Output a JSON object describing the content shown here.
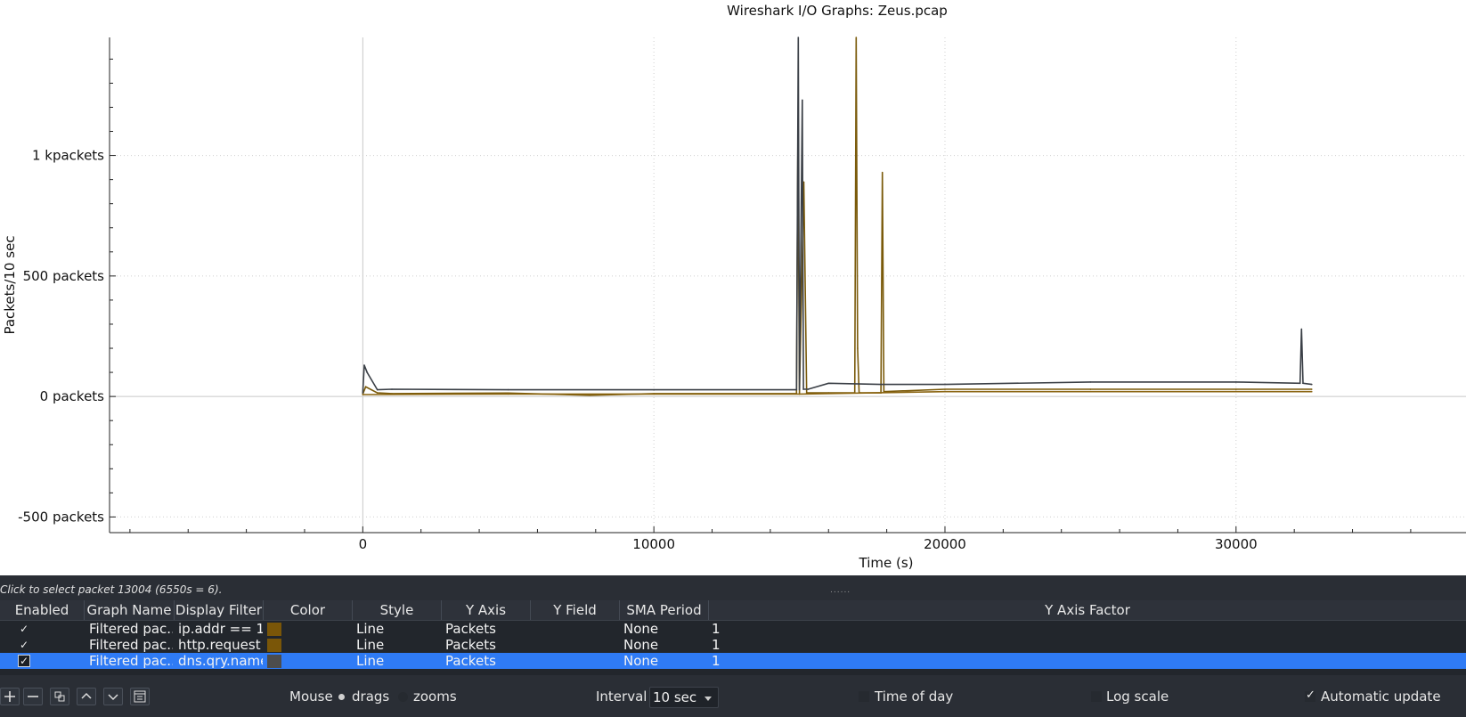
{
  "window_title": "Wireshark I/O Graphs: Zeus.pcap",
  "chart_data": {
    "type": "line",
    "title": "Wireshark I/O Graphs: Zeus.pcap",
    "xlabel": "Time (s)",
    "ylabel": "Packets/10 sec",
    "xlim": [
      -8700,
      37900
    ],
    "ylim": [
      -565,
      1490
    ],
    "x_ticks": [
      0,
      10000,
      20000,
      30000
    ],
    "x_tick_labels": [
      "0",
      "10000",
      "20000",
      "30000"
    ],
    "y_ticks": [
      -500,
      0,
      500,
      1000
    ],
    "y_tick_labels": [
      "-500 packets",
      "0 packets",
      "500 packets",
      "1 kpackets"
    ],
    "grid": true,
    "series": [
      {
        "name": "ip.addr == 1...",
        "color": "#7a5a0a",
        "x": [
          0,
          100,
          500,
          1000,
          5000,
          7800,
          10000,
          14900,
          14950,
          15000,
          15100,
          15150,
          15250,
          16000,
          16900,
          16950,
          17000,
          17050,
          17100,
          17800,
          17850,
          17900,
          20000,
          25000,
          30000,
          32600
        ],
        "values": [
          10,
          40,
          15,
          12,
          14,
          5,
          12,
          12,
          1100,
          10,
          580,
          890,
          15,
          15,
          15,
          1490,
          200,
          15,
          15,
          15,
          930,
          20,
          30,
          30,
          30,
          30
        ]
      },
      {
        "name": "http.request",
        "color": "#8a6410",
        "x": [
          0,
          5000,
          10000,
          15000,
          20000,
          25000,
          30000,
          32600
        ],
        "values": [
          8,
          10,
          10,
          10,
          20,
          20,
          20,
          20
        ]
      },
      {
        "name": "dns.qry.name",
        "color": "#3a3f46",
        "x": [
          0,
          50,
          150,
          500,
          1000,
          5000,
          10000,
          14900,
          14960,
          15000,
          15100,
          15140,
          15300,
          16000,
          17800,
          20000,
          25000,
          30000,
          32200,
          32250,
          32300,
          32600
        ],
        "values": [
          15,
          130,
          100,
          28,
          30,
          28,
          28,
          28,
          1490,
          28,
          1230,
          30,
          30,
          55,
          50,
          50,
          60,
          60,
          55,
          280,
          55,
          50
        ]
      }
    ]
  },
  "status_text": "Click to select packet 13004 (6550s = 6).",
  "splitter_text": "......",
  "table": {
    "headers": {
      "enabled": "Enabled",
      "graph_name": "Graph Name",
      "display_filter": "Display Filter",
      "color": "Color",
      "style": "Style",
      "y_axis": "Y Axis",
      "y_field": "Y Field",
      "sma_period": "SMA Period",
      "y_axis_factor": "Y Axis Factor"
    },
    "rows": [
      {
        "enabled": "✓",
        "graph_name": "Filtered pac...",
        "display_filter": "ip.addr == 1...",
        "color": "#7a5608",
        "style": "Line",
        "y_axis": "Packets",
        "y_field": "",
        "sma_period": "None",
        "y_axis_factor": "1"
      },
      {
        "enabled": "✓",
        "graph_name": "Filtered pac...",
        "display_filter": "http.request",
        "color": "#7a5608",
        "style": "Line",
        "y_axis": "Packets",
        "y_field": "",
        "sma_period": "None",
        "y_axis_factor": "1"
      },
      {
        "enabled": "✓",
        "graph_name": "Filtered pac...",
        "display_filter": "dns.qry.name",
        "color": "#4d4d4d",
        "style": "Line",
        "y_axis": "Packets",
        "y_field": "",
        "sma_period": "None",
        "y_axis_factor": "1"
      }
    ]
  },
  "toolbar": {
    "buttons": [
      "add-icon",
      "remove-icon",
      "copy-icon",
      "move-up-icon",
      "move-down-icon",
      "clear-icon"
    ],
    "mouse_label": "Mouse",
    "drags_label": "drags",
    "zooms_label": "zooms",
    "mouse_mode": "drags",
    "interval_label": "Interval",
    "interval_value": "10 sec",
    "time_of_day_label": "Time of day",
    "time_of_day": false,
    "log_scale_label": "Log scale",
    "log_scale": false,
    "auto_update_label": "Automatic update",
    "auto_update": true
  }
}
